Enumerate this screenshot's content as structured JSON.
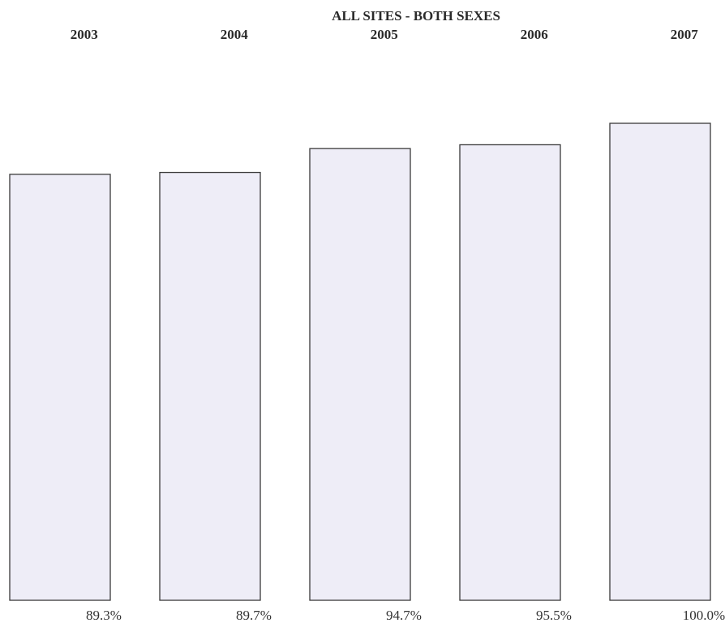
{
  "chart_data": {
    "type": "bar",
    "title": "ALL SITES - BOTH SEXES",
    "categories": [
      "2003",
      "2004",
      "2005",
      "2006",
      "2007"
    ],
    "values": [
      89.3,
      89.7,
      94.7,
      95.5,
      100.0
    ],
    "value_labels": [
      "89.3%",
      "89.7%",
      "94.7%",
      "95.5%",
      "100.0%"
    ],
    "unit": "%",
    "ylim": [
      0,
      100
    ],
    "grid": false,
    "legend": "none",
    "colors": {
      "bar_fill": "#eeedf7",
      "bar_stroke": "#3a3a3a",
      "text": "#2a2a2a"
    }
  }
}
